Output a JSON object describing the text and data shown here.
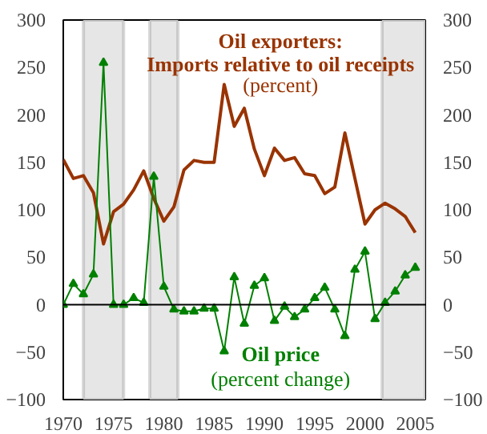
{
  "chart_data": {
    "type": "line",
    "x": [
      1970,
      1971,
      1972,
      1973,
      1974,
      1975,
      1976,
      1977,
      1978,
      1979,
      1980,
      1981,
      1982,
      1983,
      1984,
      1985,
      1986,
      1987,
      1988,
      1989,
      1990,
      1991,
      1992,
      1993,
      1994,
      1995,
      1996,
      1997,
      1998,
      1999,
      2000,
      2001,
      2002,
      2003,
      2004,
      2005
    ],
    "series": [
      {
        "name": "Oil exporters:\nImports relative to oil receipts",
        "color": "#993300",
        "marker": "none",
        "values": [
          153,
          133,
          136,
          118,
          64,
          98,
          106,
          121,
          141,
          112,
          88,
          103,
          142,
          152,
          150,
          150,
          232,
          188,
          207,
          164,
          136,
          165,
          152,
          155,
          138,
          136,
          117,
          124,
          181,
          133,
          85,
          100,
          107,
          101,
          93,
          76
        ]
      },
      {
        "name": "Oil price",
        "color": "#008000",
        "marker": "triangle",
        "values": [
          0,
          22,
          11,
          32,
          255,
          0,
          0,
          7,
          2,
          135,
          19,
          -5,
          -7,
          -7,
          -4,
          -4,
          -49,
          29,
          -20,
          20,
          28,
          -17,
          -2,
          -13,
          -5,
          7,
          18,
          -5,
          -33,
          37,
          56,
          -15,
          2,
          14,
          31,
          39
        ]
      }
    ],
    "annotations": [
      "(percent)",
      "(percent change)"
    ],
    "xlim": [
      1970,
      2006
    ],
    "xticks": [
      1970,
      1975,
      1980,
      1985,
      1990,
      1995,
      2000,
      2005
    ],
    "ylim": [
      -100,
      300
    ],
    "yticks": [
      -100,
      -50,
      0,
      50,
      100,
      150,
      200,
      250,
      300
    ],
    "y2lim": [
      -100,
      300
    ],
    "y2ticks": [
      -100,
      -50,
      0,
      50,
      100,
      150,
      200,
      250,
      300
    ],
    "ref_lines": [
      {
        "axis": "y",
        "value": 0,
        "color": "#000000"
      }
    ],
    "bands": [
      {
        "axis": "x",
        "from": 1972,
        "to": 1976,
        "color": "#e6e6e6"
      },
      {
        "axis": "x",
        "from": 1978.6,
        "to": 1981.4,
        "color": "#e6e6e6"
      },
      {
        "axis": "x",
        "from": 2001.7,
        "to": 2006,
        "color": "#e6e6e6"
      }
    ],
    "grid": false
  }
}
